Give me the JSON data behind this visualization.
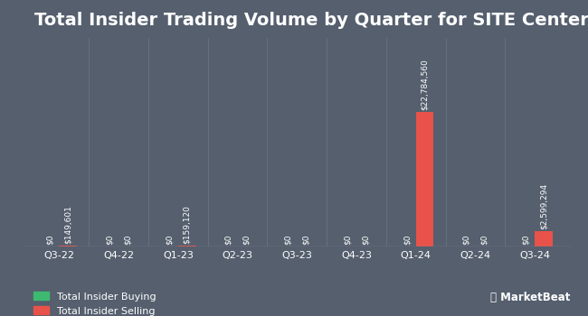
{
  "title": "Total Insider Trading Volume by Quarter for SITE Centers",
  "quarters": [
    "Q3-22",
    "Q4-22",
    "Q1-23",
    "Q2-23",
    "Q3-23",
    "Q4-23",
    "Q1-24",
    "Q2-24",
    "Q3-24"
  ],
  "buying": [
    0,
    0,
    0,
    0,
    0,
    0,
    0,
    0,
    0
  ],
  "selling": [
    149601,
    0,
    159120,
    0,
    0,
    0,
    22784560,
    0,
    2599294
  ],
  "buy_labels": [
    "$0",
    "$0",
    "$0",
    "$0",
    "$0",
    "$0",
    "$0",
    "$0",
    "$0"
  ],
  "sell_labels": [
    "$149,601",
    "$0",
    "$159,120",
    "$0",
    "$0",
    "$0",
    "$22,784,560",
    "$0",
    "$2,599,294"
  ],
  "background_color": "#555f6e",
  "bar_color_buying": "#3dba6f",
  "bar_color_selling": "#e8524a",
  "text_color": "#ffffff",
  "title_fontsize": 14,
  "label_fontsize": 6.5,
  "tick_fontsize": 8,
  "legend_fontsize": 8,
  "bar_width": 0.3,
  "ylim_max": 22784560,
  "grid_color": "#666f7e",
  "hline_color": "#7a8494"
}
